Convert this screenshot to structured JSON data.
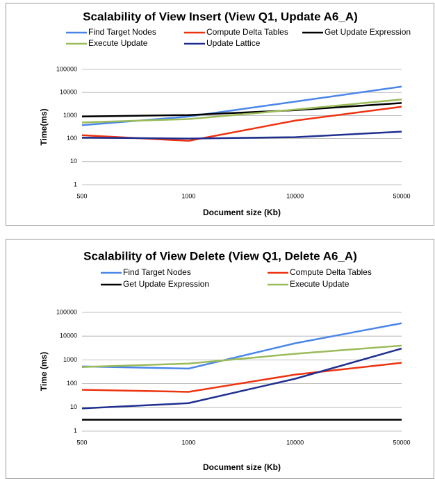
{
  "chart_data": [
    {
      "type": "line",
      "title": "Scalability of View Insert (View Q1, Update A6_A)",
      "x_label": "Document size (Kb)",
      "y_label": "Time(ms)",
      "categories": [
        "500",
        "1000",
        "10000",
        "50000"
      ],
      "log_scale": true,
      "grid": true,
      "ylim": [
        1,
        100000
      ],
      "yticks": [
        1,
        10,
        100,
        1000,
        10000,
        100000
      ],
      "series": [
        {
          "name": "Find Target Nodes",
          "color": "#4a86e8",
          "values": [
            380,
            900,
            4000,
            18000
          ]
        },
        {
          "name": "Compute Delta Tables",
          "color": "#ee3311",
          "values": [
            140,
            80,
            600,
            2400
          ]
        },
        {
          "name": "Get Update Expression",
          "color": "#000000",
          "values": [
            900,
            1050,
            1700,
            3500
          ]
        },
        {
          "name": "Execute Update",
          "color": "#9bbb59",
          "values": [
            500,
            700,
            1800,
            5000
          ]
        },
        {
          "name": "Update Lattice",
          "color": "#1f2f8f",
          "values": [
            110,
            100,
            115,
            200
          ]
        }
      ]
    },
    {
      "type": "line",
      "title": "Scalability of View Delete (View Q1, Delete A6_A)",
      "x_label": "Document size (Kb)",
      "y_label": "Time (ms)",
      "categories": [
        "500",
        "1000",
        "10000",
        "50000"
      ],
      "log_scale": true,
      "grid": true,
      "ylim": [
        1,
        100000
      ],
      "yticks": [
        1,
        10,
        100,
        1000,
        10000,
        100000
      ],
      "series": [
        {
          "name": "Find Target Nodes",
          "color": "#4a86e8",
          "values": [
            530,
            430,
            5000,
            35000
          ]
        },
        {
          "name": "Compute Delta Tables",
          "color": "#ee3311",
          "values": [
            55,
            45,
            240,
            750
          ]
        },
        {
          "name": "Get Update Expression",
          "color": "#000000",
          "values": [
            3,
            3,
            3,
            3
          ]
        },
        {
          "name": "Execute Update",
          "color": "#9bbb59",
          "values": [
            500,
            700,
            1800,
            4000
          ]
        },
        {
          "color": "#1f2f8f",
          "values": [
            9,
            15,
            160,
            3000
          ]
        }
      ]
    }
  ]
}
